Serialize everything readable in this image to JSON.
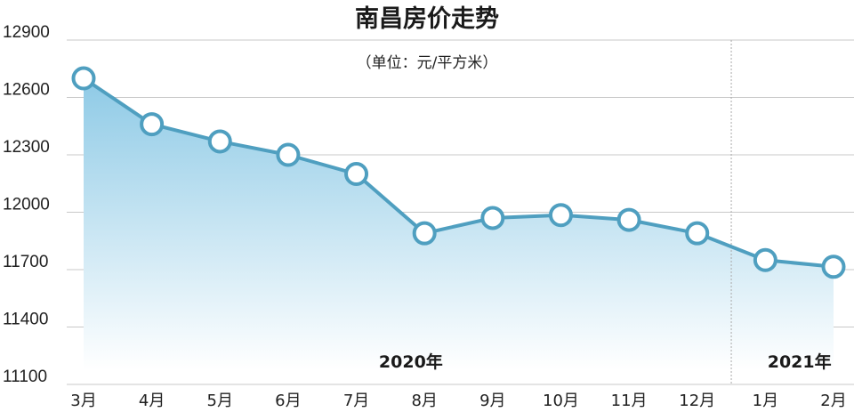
{
  "chart_data": {
    "type": "area",
    "title": "南昌房价走势",
    "subtitle": "（单位：元/平方米）",
    "categories": [
      "3月",
      "4月",
      "5月",
      "6月",
      "7月",
      "8月",
      "9月",
      "10月",
      "11月",
      "12月",
      "1月",
      "2月"
    ],
    "values": [
      12700,
      12460,
      12370,
      12300,
      12200,
      11890,
      11970,
      11985,
      11960,
      11890,
      11750,
      11715
    ],
    "yticks": [
      "12900",
      "12600",
      "12300",
      "12000",
      "11700",
      "11400",
      "11100"
    ],
    "ylim": [
      11100,
      12900
    ],
    "grid": "horizontal",
    "year_labels": [
      {
        "text": "2020年",
        "category_index": 4.8
      },
      {
        "text": "2021年",
        "category_index": 10.5
      }
    ],
    "year_divider_after_index": 9,
    "colors": {
      "line": "#4f9fc0",
      "marker_fill": "#ffffff",
      "area_top": "#8ecae6",
      "area_bottom": "#ffffff",
      "grid": "#c8c8c8",
      "divider": "#aaaaaa"
    }
  }
}
